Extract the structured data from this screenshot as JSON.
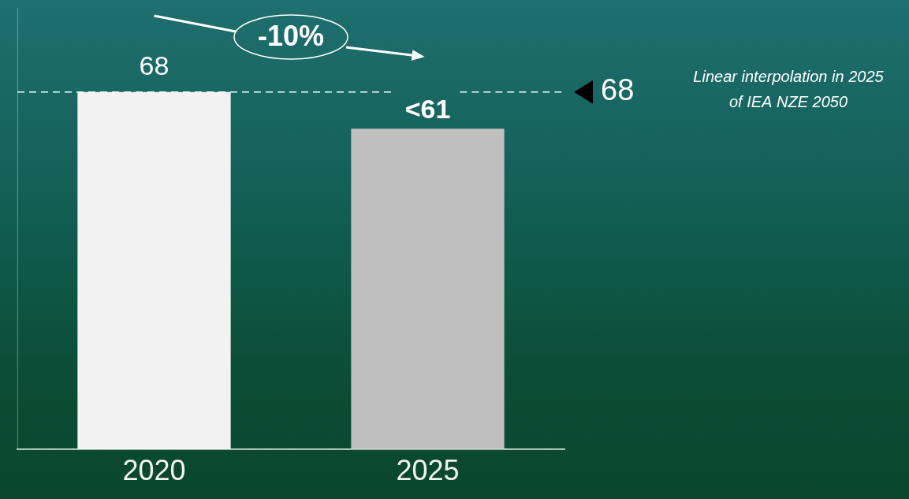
{
  "chart_data": {
    "type": "bar",
    "categories": [
      "2020",
      "2025"
    ],
    "values": [
      68,
      61
    ],
    "value_labels": [
      "68",
      "<61"
    ],
    "colors": [
      "#f2f2f2",
      "#bfbfbf"
    ],
    "ylim": [
      0,
      84
    ],
    "grid": false,
    "data_labels": true,
    "tick_labels": "x",
    "annotations": [
      {
        "text": "-10%"
      }
    ],
    "reference_line": {
      "value": 68,
      "note": "Linear interpolation in 2025 of IEA NZE 2050"
    }
  }
}
